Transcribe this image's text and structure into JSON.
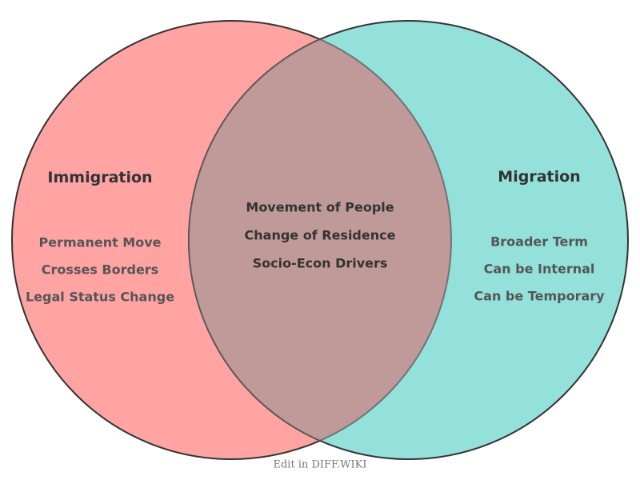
{
  "colors": {
    "left": "#FFA3A3",
    "right": "#94E0DA",
    "overlap": "#C09A98",
    "stroke": "#333333"
  },
  "left": {
    "title": "Immigration",
    "items": [
      "Permanent Move",
      "Crosses Borders",
      "Legal Status Change"
    ]
  },
  "right": {
    "title": "Migration",
    "items": [
      "Broader Term",
      "Can be Internal",
      "Can be Temporary"
    ]
  },
  "overlap": {
    "items": [
      "Movement of People",
      "Change of Residence",
      "Socio-Econ Drivers"
    ]
  },
  "footer": "Edit in DIFF.WIKI"
}
